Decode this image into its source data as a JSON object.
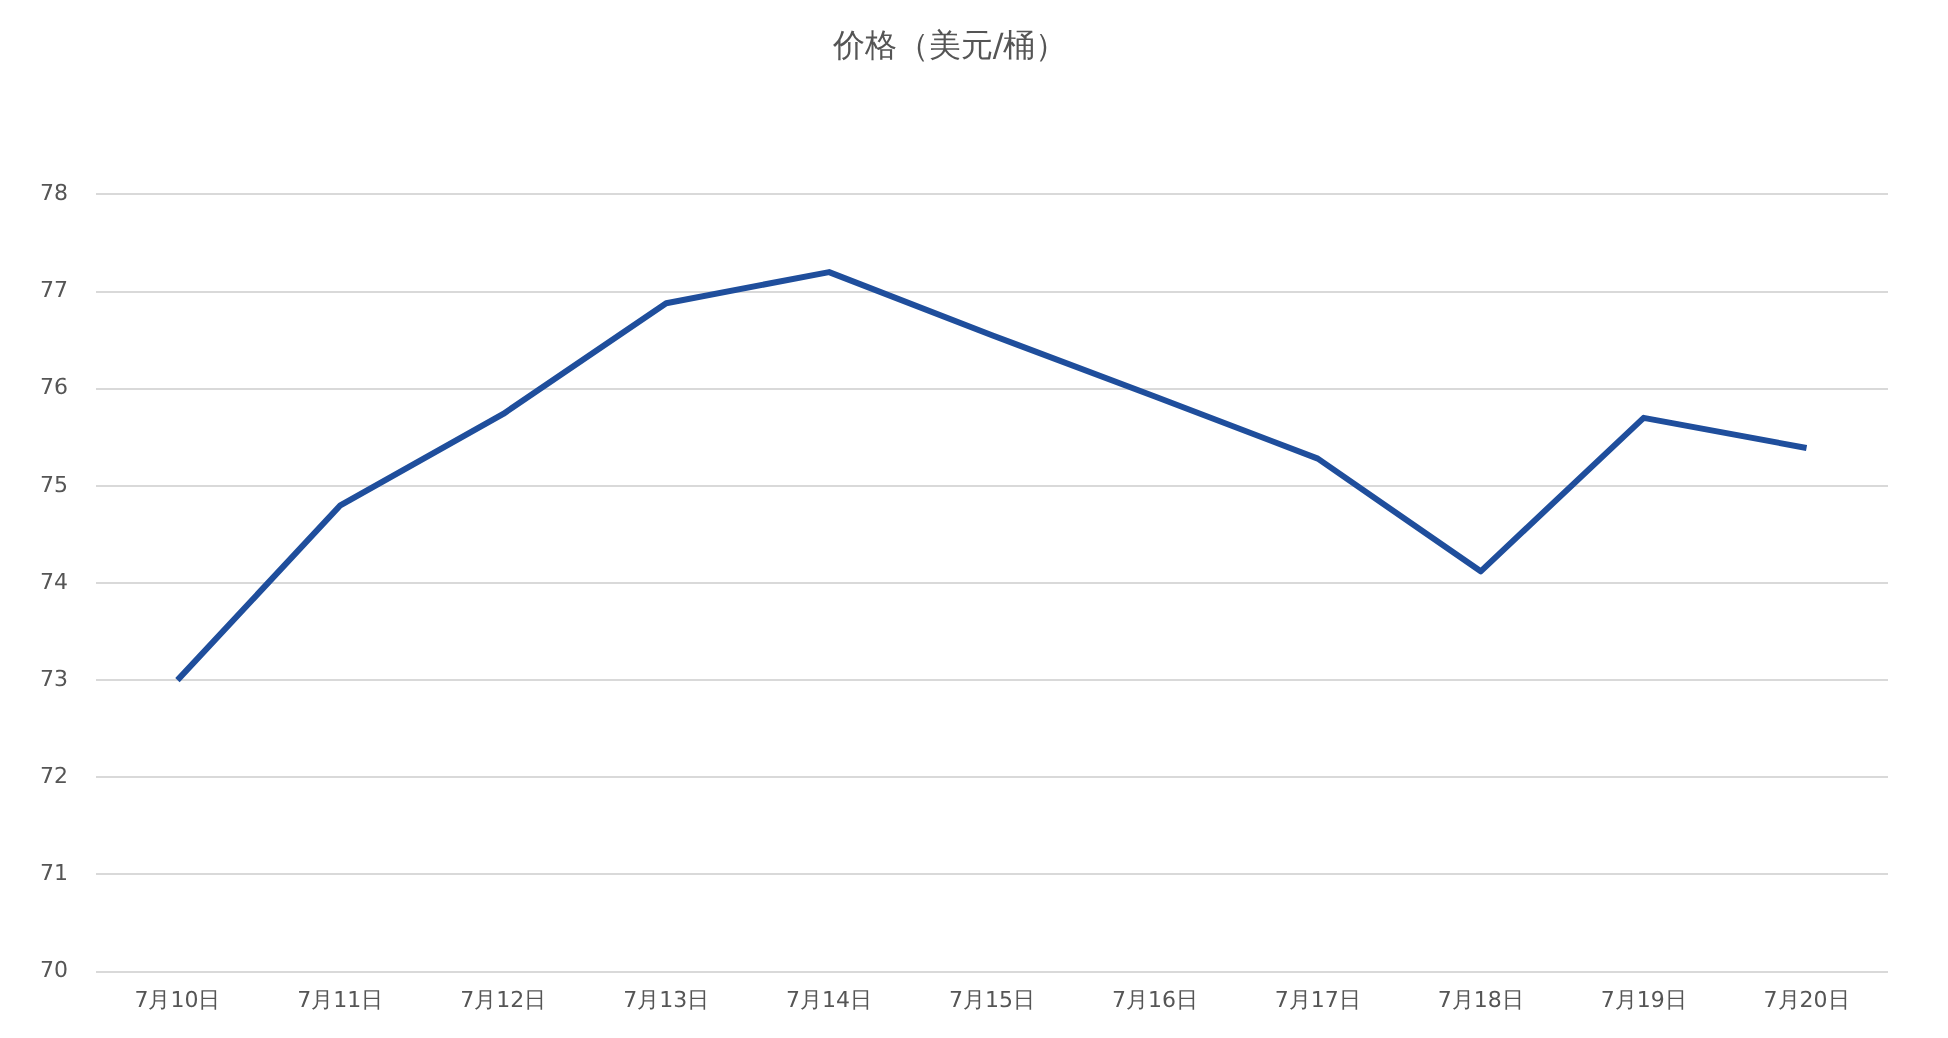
{
  "chart_data": {
    "type": "line",
    "title": "价格（美元/桶）",
    "categories": [
      "7月10日",
      "7月11日",
      "7月12日",
      "7月13日",
      "7月14日",
      "7月15日",
      "7月16日",
      "7月17日",
      "7月18日",
      "7月19日",
      "7月20日"
    ],
    "series": [
      {
        "color": "#1f4e9c",
        "values": [
          73.0,
          74.8,
          75.74,
          76.88,
          77.2,
          76.55,
          75.92,
          75.28,
          74.12,
          75.7,
          75.39
        ]
      }
    ],
    "ylim": [
      70,
      78
    ],
    "yticks": [
      70,
      71,
      72,
      73,
      74,
      75,
      76,
      77,
      78
    ],
    "grid": "y",
    "legend": false,
    "marker": "none",
    "line_style": "solid"
  }
}
